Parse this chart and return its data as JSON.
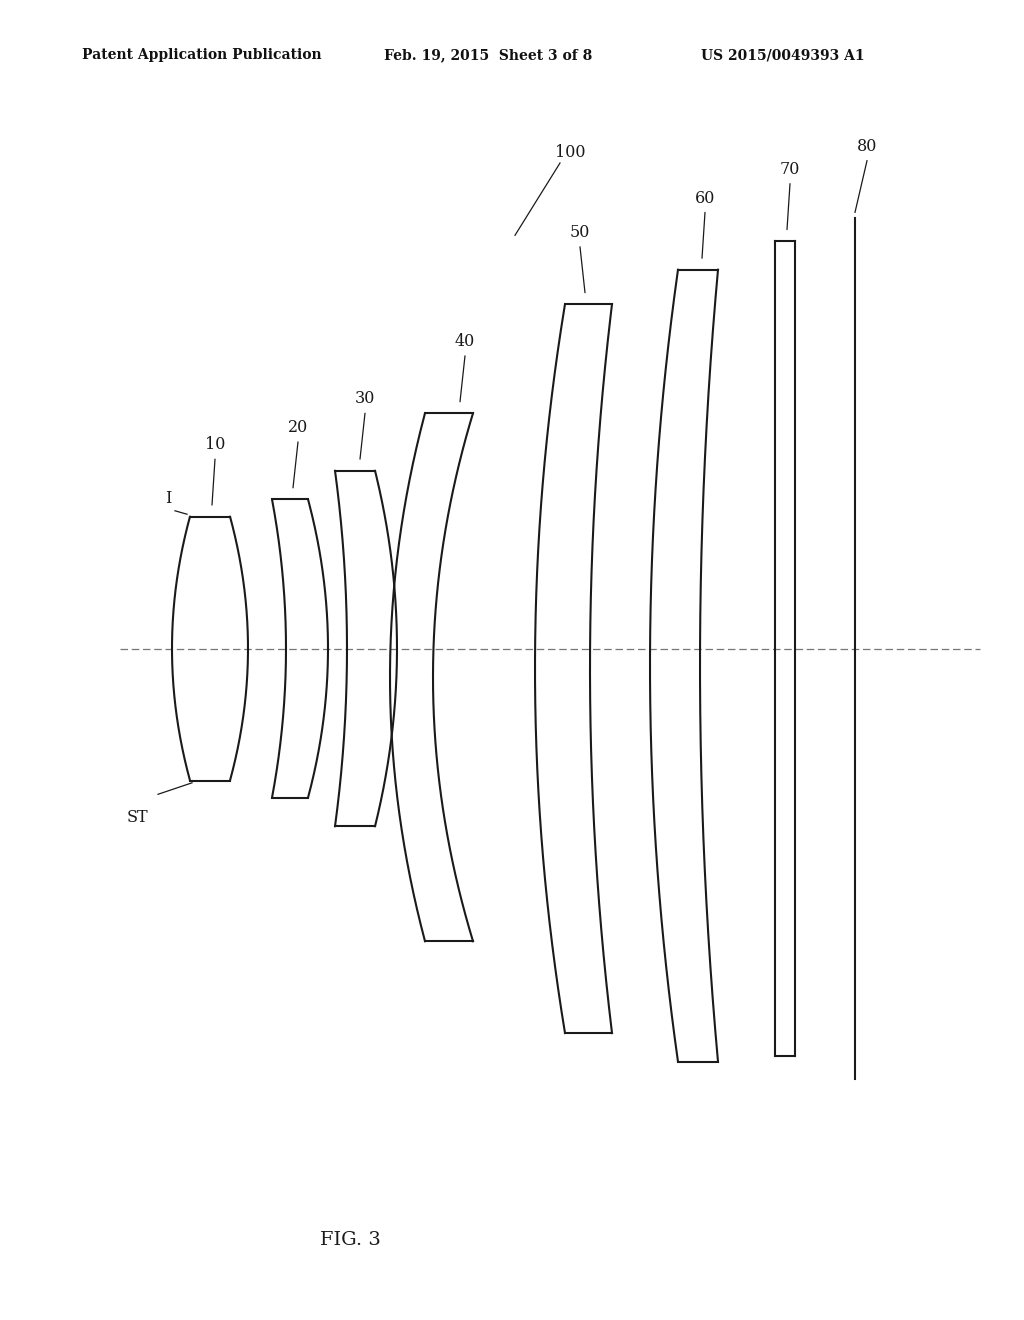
{
  "bg_color": "#ffffff",
  "title": "FIG. 3",
  "header_left": "Patent Application Publication",
  "header_mid": "Feb. 19, 2015  Sheet 3 of 8",
  "header_right": "US 2015/0049393 A1",
  "fig_label": "FIG. 3",
  "line_color": "#1a1a1a",
  "axis_color": "#666666",
  "label_color": "#1a1a1a",
  "label_fontsize": 11.5,
  "title_fontsize": 14,
  "lw": 1.5
}
